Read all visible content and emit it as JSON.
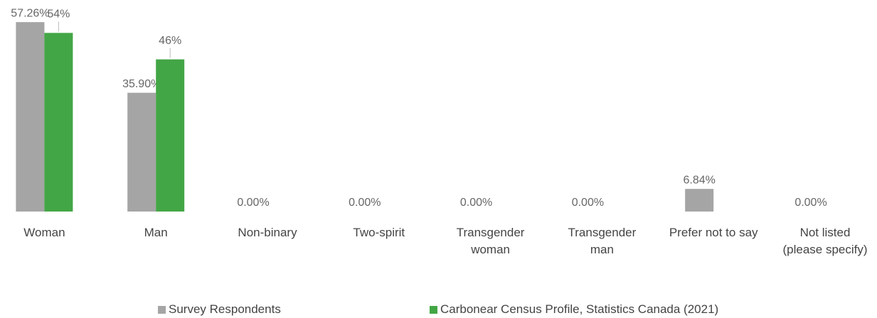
{
  "chart_data": {
    "type": "bar",
    "categories": [
      "Woman",
      "Man",
      "Non-binary",
      "Two-spirit",
      "Transgender\nwoman",
      "Transgender\nman",
      "Prefer not to say",
      "Not listed\n(please specify)"
    ],
    "series": [
      {
        "name": "Survey Respondents",
        "color": "#a5a5a5",
        "values": [
          57.26,
          35.9,
          0,
          0,
          0,
          0,
          6.84,
          0
        ],
        "value_labels": [
          "57.26%",
          "35.90%",
          "0.00%",
          "0.00%",
          "0.00%",
          "0.00%",
          "6.84%",
          "0.00%"
        ]
      },
      {
        "name": "Carbonear Census Profile, Statistics Canada (2021)",
        "color": "#43a646",
        "values": [
          54,
          46,
          null,
          null,
          null,
          null,
          null,
          null
        ],
        "value_labels": [
          "54%",
          "46%",
          null,
          null,
          null,
          null,
          null,
          null
        ]
      }
    ]
  }
}
